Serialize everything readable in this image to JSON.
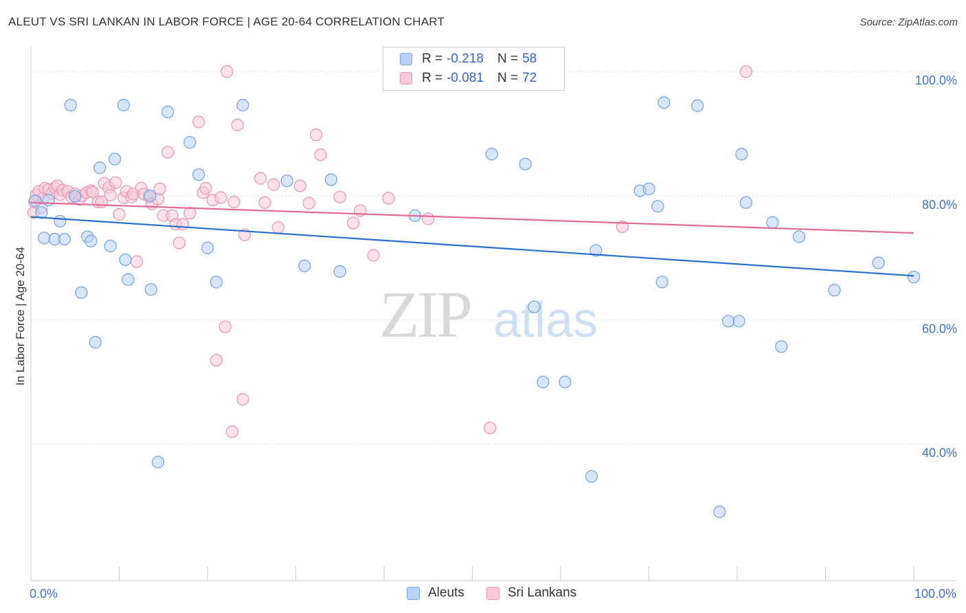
{
  "header": {
    "title": "ALEUT VS SRI LANKAN IN LABOR FORCE | AGE 20-64 CORRELATION CHART",
    "source": "Source: ZipAtlas.com"
  },
  "watermark": {
    "zip": "ZIP",
    "atlas": "atlas"
  },
  "legend": {
    "rows": [
      {
        "r_label": "R = ",
        "r_value": "-0.218",
        "n_label": "N = ",
        "n_value": "58"
      },
      {
        "r_label": "R = ",
        "r_value": "-0.081",
        "n_label": "N = ",
        "n_value": "72"
      }
    ]
  },
  "chart_data": {
    "type": "scatter",
    "title": "ALEUT VS SRI LANKAN IN LABOR FORCE | AGE 20-64 CORRELATION CHART",
    "xlabel": "",
    "ylabel": "In Labor Force | Age 20-64",
    "xlim": [
      0,
      100
    ],
    "ylim": [
      18,
      104
    ],
    "x_tick_labels": [
      {
        "value": 0,
        "label": "0.0%"
      },
      {
        "value": 100,
        "label": "100.0%"
      }
    ],
    "y_ticks": [
      {
        "value": 40,
        "label": "40.0%"
      },
      {
        "value": 60,
        "label": "60.0%"
      },
      {
        "value": 80,
        "label": "80.0%"
      },
      {
        "value": 100,
        "label": "100.0%"
      }
    ],
    "grid": true,
    "legend_position": "top-center",
    "series": [
      {
        "name": "Aleuts",
        "color": "#7ba7e6",
        "fill": "#b9d1f3",
        "trend_color": "#2b6fd0",
        "trend": {
          "x": [
            0,
            100
          ],
          "y": [
            76.6,
            67.1
          ]
        },
        "points": [
          [
            0.5,
            79.2
          ],
          [
            1.2,
            77.3
          ],
          [
            1.5,
            73.2
          ],
          [
            2.0,
            79.3
          ],
          [
            2.7,
            73.0
          ],
          [
            3.3,
            75.9
          ],
          [
            3.8,
            73.0
          ],
          [
            4.5,
            94.6
          ],
          [
            5.0,
            79.9
          ],
          [
            5.7,
            64.4
          ],
          [
            6.4,
            73.4
          ],
          [
            6.8,
            72.7
          ],
          [
            7.3,
            56.4
          ],
          [
            7.8,
            84.5
          ],
          [
            9.0,
            71.9
          ],
          [
            9.5,
            85.9
          ],
          [
            10.5,
            94.6
          ],
          [
            10.7,
            69.7
          ],
          [
            11.0,
            66.5
          ],
          [
            13.5,
            80.0
          ],
          [
            13.6,
            64.9
          ],
          [
            14.4,
            37.1
          ],
          [
            15.5,
            93.5
          ],
          [
            18.0,
            88.6
          ],
          [
            19.0,
            83.4
          ],
          [
            20.0,
            71.6
          ],
          [
            21.0,
            66.1
          ],
          [
            24.0,
            94.6
          ],
          [
            29.0,
            82.4
          ],
          [
            31.0,
            68.7
          ],
          [
            34.0,
            82.6
          ],
          [
            35.0,
            67.8
          ],
          [
            43.5,
            76.8
          ],
          [
            52.2,
            86.7
          ],
          [
            56.0,
            85.1
          ],
          [
            57.0,
            62.1
          ],
          [
            58.0,
            50.0
          ],
          [
            60.5,
            50.0
          ],
          [
            63.5,
            34.8
          ],
          [
            64.0,
            71.2
          ],
          [
            69.0,
            80.8
          ],
          [
            70.0,
            81.1
          ],
          [
            71.0,
            78.3
          ],
          [
            71.5,
            66.1
          ],
          [
            71.7,
            95.0
          ],
          [
            75.5,
            94.5
          ],
          [
            78.0,
            29.1
          ],
          [
            79.0,
            59.8
          ],
          [
            80.2,
            59.8
          ],
          [
            80.5,
            86.7
          ],
          [
            81.0,
            78.9
          ],
          [
            84.0,
            75.7
          ],
          [
            85.0,
            55.7
          ],
          [
            87.0,
            73.4
          ],
          [
            91.0,
            64.8
          ],
          [
            96.0,
            69.2
          ],
          [
            100.0,
            66.9
          ]
        ]
      },
      {
        "name": "Sri Lankans",
        "color": "#eb9ab6",
        "fill": "#f7cbdb",
        "trend_color": "#e06c98",
        "trend": {
          "x": [
            0,
            100
          ],
          "y": [
            78.9,
            74.0
          ]
        },
        "points": [
          [
            0.3,
            77.3
          ],
          [
            0.4,
            79.0
          ],
          [
            0.6,
            80.1
          ],
          [
            0.9,
            80.7
          ],
          [
            1.2,
            78.1
          ],
          [
            1.4,
            79.6
          ],
          [
            1.6,
            81.2
          ],
          [
            2.0,
            81.0
          ],
          [
            2.4,
            80.4
          ],
          [
            2.7,
            81.3
          ],
          [
            3.0,
            81.6
          ],
          [
            3.3,
            80.2
          ],
          [
            3.6,
            80.9
          ],
          [
            4.2,
            80.7
          ],
          [
            4.6,
            79.8
          ],
          [
            5.0,
            80.3
          ],
          [
            5.5,
            79.4
          ],
          [
            5.8,
            80.0
          ],
          [
            6.3,
            80.5
          ],
          [
            6.8,
            80.8
          ],
          [
            7.0,
            80.6
          ],
          [
            7.6,
            79.0
          ],
          [
            8.0,
            79.0
          ],
          [
            8.3,
            82.0
          ],
          [
            8.8,
            81.3
          ],
          [
            9.0,
            80.1
          ],
          [
            9.6,
            82.1
          ],
          [
            10.0,
            77.0
          ],
          [
            10.5,
            79.7
          ],
          [
            10.8,
            80.7
          ],
          [
            11.4,
            79.8
          ],
          [
            11.6,
            80.3
          ],
          [
            12.0,
            69.4
          ],
          [
            12.5,
            81.2
          ],
          [
            12.8,
            80.3
          ],
          [
            13.4,
            79.8
          ],
          [
            13.7,
            78.7
          ],
          [
            14.4,
            79.5
          ],
          [
            14.6,
            81.1
          ],
          [
            15.0,
            76.8
          ],
          [
            15.5,
            87.0
          ],
          [
            16.0,
            76.8
          ],
          [
            16.4,
            75.4
          ],
          [
            16.8,
            72.4
          ],
          [
            17.2,
            75.4
          ],
          [
            18.0,
            77.2
          ],
          [
            19.0,
            91.9
          ],
          [
            19.5,
            80.5
          ],
          [
            19.8,
            81.2
          ],
          [
            20.6,
            79.3
          ],
          [
            21.0,
            53.5
          ],
          [
            21.5,
            79.7
          ],
          [
            22.0,
            58.9
          ],
          [
            22.2,
            100.0
          ],
          [
            22.8,
            42.0
          ],
          [
            23.0,
            79.0
          ],
          [
            23.4,
            91.4
          ],
          [
            24.0,
            47.2
          ],
          [
            24.2,
            73.7
          ],
          [
            26.0,
            82.8
          ],
          [
            26.5,
            78.9
          ],
          [
            27.5,
            81.8
          ],
          [
            28.0,
            74.9
          ],
          [
            30.5,
            81.6
          ],
          [
            31.5,
            78.8
          ],
          [
            32.3,
            89.8
          ],
          [
            32.8,
            86.6
          ],
          [
            35.0,
            79.8
          ],
          [
            36.5,
            75.6
          ],
          [
            37.3,
            77.6
          ],
          [
            38.8,
            70.4
          ],
          [
            40.5,
            79.6
          ],
          [
            45.0,
            76.3
          ],
          [
            52.0,
            42.6
          ],
          [
            67.0,
            75.0
          ],
          [
            81.0,
            100.0
          ]
        ]
      }
    ]
  }
}
